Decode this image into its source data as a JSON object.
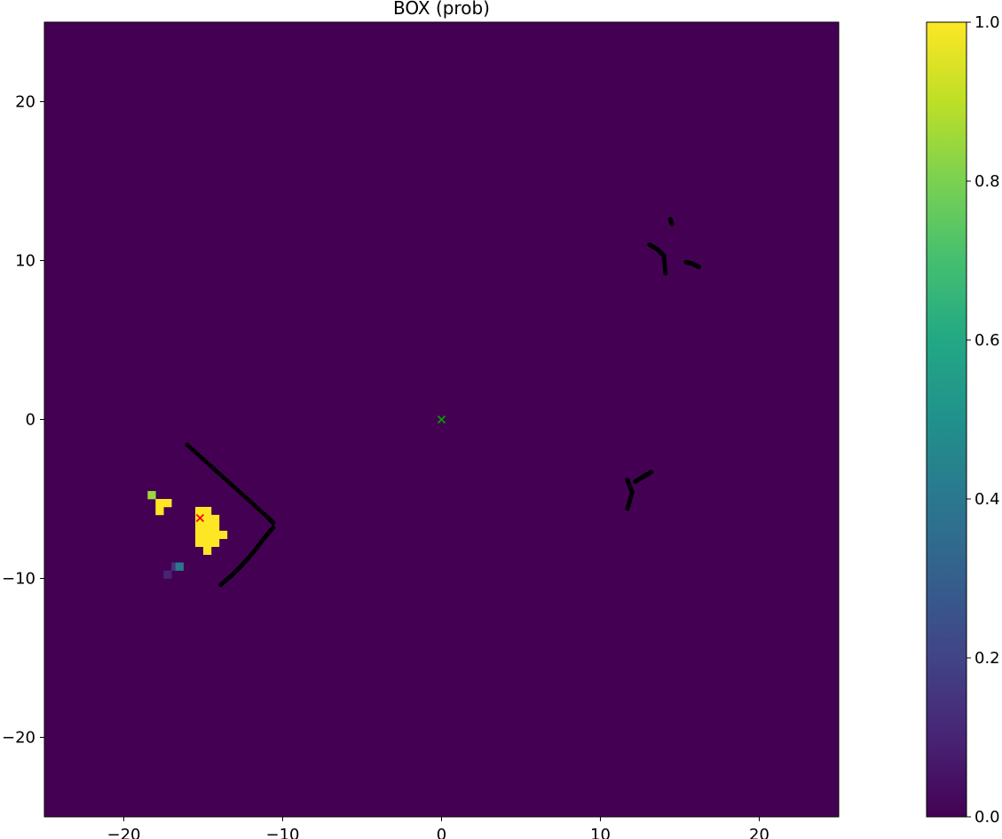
{
  "chart_data": {
    "type": "heatmap",
    "title": "BOX (prob)",
    "xlabel": "",
    "ylabel": "",
    "xlim": [
      -25,
      25
    ],
    "ylim": [
      -25,
      25
    ],
    "xticks": [
      -20,
      -10,
      0,
      10,
      20
    ],
    "yticks": [
      -20,
      -10,
      0,
      10,
      20
    ],
    "xtick_labels": [
      "−20",
      "−10",
      "0",
      "10",
      "20"
    ],
    "ytick_labels": [
      "−20",
      "−10",
      "0",
      "10",
      "20"
    ],
    "grid": false,
    "colormap": "viridis",
    "background_value": 0.0,
    "cell_size": 0.5,
    "colorbar": {
      "range": [
        0.0,
        1.0
      ],
      "ticks": [
        0.0,
        0.2,
        0.4,
        0.6,
        0.8,
        1.0
      ],
      "tick_labels": [
        "0.0",
        "0.2",
        "0.4",
        "0.6",
        "0.8",
        "1.0"
      ],
      "placement": "right"
    },
    "cells": [
      {
        "x": -18.25,
        "y": -4.75,
        "value": 0.85
      },
      {
        "x": -17.75,
        "y": -5.25,
        "value": 1.0
      },
      {
        "x": -17.25,
        "y": -5.25,
        "value": 1.0
      },
      {
        "x": -17.75,
        "y": -5.75,
        "value": 1.0
      },
      {
        "x": -15.25,
        "y": -5.75,
        "value": 1.0
      },
      {
        "x": -14.75,
        "y": -5.75,
        "value": 1.0
      },
      {
        "x": -15.25,
        "y": -6.25,
        "value": 1.0
      },
      {
        "x": -14.75,
        "y": -6.25,
        "value": 1.0
      },
      {
        "x": -14.25,
        "y": -6.25,
        "value": 1.0
      },
      {
        "x": -15.25,
        "y": -6.75,
        "value": 1.0
      },
      {
        "x": -14.75,
        "y": -6.75,
        "value": 1.0
      },
      {
        "x": -14.25,
        "y": -6.75,
        "value": 1.0
      },
      {
        "x": -15.25,
        "y": -7.25,
        "value": 1.0
      },
      {
        "x": -14.75,
        "y": -7.25,
        "value": 1.0
      },
      {
        "x": -14.25,
        "y": -7.25,
        "value": 1.0
      },
      {
        "x": -13.75,
        "y": -7.25,
        "value": 1.0
      },
      {
        "x": -15.25,
        "y": -7.75,
        "value": 1.0
      },
      {
        "x": -14.75,
        "y": -7.75,
        "value": 1.0
      },
      {
        "x": -14.25,
        "y": -7.75,
        "value": 1.0
      },
      {
        "x": -14.75,
        "y": -8.25,
        "value": 1.0
      },
      {
        "x": -16.75,
        "y": -9.25,
        "value": 0.15
      },
      {
        "x": -16.5,
        "y": -9.25,
        "value": 0.4
      },
      {
        "x": -17.25,
        "y": -9.75,
        "value": 0.1
      }
    ],
    "scatter_points": {
      "color": "#000000",
      "segments": [
        {
          "x": [
            -16.0,
            -15.0,
            -14.0,
            -13.0,
            -12.0,
            -11.0,
            -10.6
          ],
          "y": [
            -1.6,
            -2.5,
            -3.4,
            -4.3,
            -5.2,
            -6.1,
            -6.5
          ]
        },
        {
          "x": [
            -10.6,
            -11.2,
            -11.8,
            -12.5,
            -13.2,
            -13.9
          ],
          "y": [
            -6.8,
            -7.5,
            -8.3,
            -9.1,
            -9.8,
            -10.4
          ]
        },
        {
          "x": [
            13.1,
            13.6,
            14.0,
            14.1
          ],
          "y": [
            11.0,
            10.7,
            10.3,
            9.2
          ]
        },
        {
          "x": [
            14.4,
            14.5
          ],
          "y": [
            12.6,
            12.3
          ]
        },
        {
          "x": [
            15.4,
            15.8,
            16.2
          ],
          "y": [
            9.9,
            9.8,
            9.6
          ]
        },
        {
          "x": [
            11.7,
            12.0,
            11.7
          ],
          "y": [
            -3.8,
            -4.6,
            -5.6
          ]
        },
        {
          "x": [
            12.2,
            12.7,
            13.2
          ],
          "y": [
            -3.9,
            -3.6,
            -3.3
          ]
        }
      ]
    },
    "markers": [
      {
        "x": 0.0,
        "y": 0.0,
        "symbol": "x",
        "color": "#00a000"
      },
      {
        "x": -15.2,
        "y": -6.2,
        "symbol": "x",
        "color": "#ff0000"
      }
    ]
  }
}
